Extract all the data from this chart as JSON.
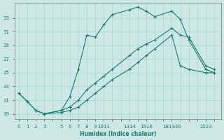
{
  "xlabel": "Humidex (Indice chaleur)",
  "bg_color": "#cce8e4",
  "grid_color": "#aad4cf",
  "line_color": "#1a7a6e",
  "line1_x": [
    0,
    1,
    2,
    3,
    5,
    6,
    7,
    8,
    9,
    10,
    11,
    13,
    14,
    15,
    16,
    18,
    19,
    20,
    22,
    23
  ],
  "line1_y": [
    22.0,
    20.8,
    19.5,
    19.0,
    19.5,
    21.5,
    25.5,
    30.5,
    30.2,
    32.0,
    33.5,
    34.2,
    34.6,
    34.0,
    33.2,
    34.0,
    32.8,
    29.8,
    25.5,
    25.0
  ],
  "line2_x": [
    0,
    1,
    2,
    3,
    5,
    6,
    7,
    8,
    9,
    10,
    11,
    13,
    14,
    15,
    16,
    18,
    19,
    20,
    22,
    23
  ],
  "line2_y": [
    22.0,
    20.8,
    19.5,
    19.0,
    19.5,
    20.0,
    21.0,
    22.5,
    23.5,
    24.5,
    25.5,
    27.5,
    28.5,
    29.2,
    29.8,
    31.5,
    30.5,
    30.2,
    26.0,
    25.5
  ],
  "line3_x": [
    2,
    3,
    5,
    6,
    7,
    8,
    9,
    10,
    11,
    13,
    14,
    15,
    16,
    18,
    19,
    20,
    22,
    23
  ],
  "line3_y": [
    19.5,
    19.0,
    19.2,
    19.5,
    20.0,
    21.0,
    22.0,
    23.0,
    24.0,
    25.5,
    26.5,
    27.5,
    28.5,
    30.5,
    26.0,
    25.5,
    25.0,
    25.0
  ],
  "xtick_positions": [
    0,
    1,
    2,
    3,
    5,
    6,
    7,
    8,
    9,
    10,
    11,
    13,
    14,
    15,
    16,
    18,
    19,
    20,
    22,
    23
  ],
  "xtick_labels": [
    "0",
    "1",
    "2",
    "3",
    "5",
    "6",
    "7",
    "8",
    "9",
    "1011",
    "",
    "1314",
    "",
    "1516",
    "",
    "181920",
    "",
    "",
    "2223",
    ""
  ],
  "yticks": [
    19,
    21,
    23,
    25,
    27,
    29,
    31,
    33
  ],
  "ylim": [
    18.2,
    35.2
  ],
  "xlim": [
    -0.5,
    23.8
  ]
}
